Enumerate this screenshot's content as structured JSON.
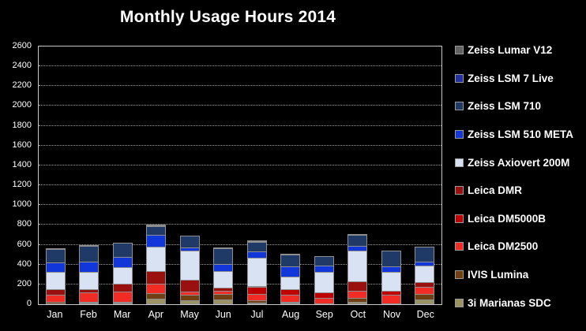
{
  "title": "Monthly Usage Hours 2014",
  "chart_data": {
    "type": "bar",
    "stacked": true,
    "title": "Monthly Usage Hours 2014",
    "xlabel": "",
    "ylabel": "",
    "categories": [
      "Jan",
      "Feb",
      "Mar",
      "Apr",
      "May",
      "Jun",
      "Jul",
      "Aug",
      "Sep",
      "Oct",
      "Nov",
      "Dec"
    ],
    "ylim": [
      0,
      2600
    ],
    "ytick_step": 200,
    "yticks": [
      0,
      200,
      400,
      600,
      800,
      1000,
      1200,
      1400,
      1600,
      1800,
      2000,
      2200,
      2400,
      2600
    ],
    "grid": "horizontal-dotted",
    "legend_position": "right",
    "background_color": "#000000",
    "series_bottom_to_top": [
      {
        "name": "3i Marianas SDC",
        "color": "#9C9362",
        "values": [
          0,
          10,
          5,
          55,
          40,
          50,
          20,
          10,
          0,
          25,
          0,
          50
        ]
      },
      {
        "name": "IVIS Lumina",
        "color": "#713F12",
        "values": [
          25,
          10,
          10,
          65,
          60,
          65,
          30,
          10,
          0,
          45,
          0,
          65
        ]
      },
      {
        "name": "Leica DM2500",
        "color": "#F02C25",
        "values": [
          75,
          105,
          110,
          105,
          40,
          35,
          70,
          80,
          65,
          80,
          95,
          75
        ]
      },
      {
        "name": "Leica DM5000B",
        "color": "#C00000",
        "values": [
          0,
          0,
          0,
          0,
          0,
          0,
          80,
          60,
          65,
          0,
          50,
          0
        ]
      },
      {
        "name": "Leica DMR",
        "color": "#9A100F",
        "values": [
          65,
          35,
          85,
          130,
          130,
          45,
          10,
          0,
          0,
          105,
          0,
          55
        ]
      },
      {
        "name": "Zeiss Axiovert 200M",
        "color": "#D9E2F2",
        "values": [
          185,
          190,
          175,
          255,
          305,
          170,
          290,
          135,
          215,
          320,
          195,
          180
        ]
      },
      {
        "name": "Zeiss LSM 510 META",
        "color": "#1136D9",
        "values": [
          105,
          105,
          112,
          132,
          38,
          78,
          78,
          118,
          65,
          55,
          65,
          45
        ]
      },
      {
        "name": "Zeiss LSM 710",
        "color": "#1F3A67",
        "values": [
          145,
          170,
          158,
          90,
          125,
          168,
          98,
          128,
          105,
          120,
          170,
          160
        ]
      },
      {
        "name": "Zeiss LSM 7 Live",
        "color": "#2531A3",
        "values": [
          10,
          10,
          0,
          10,
          0,
          10,
          15,
          15,
          0,
          10,
          0,
          0
        ]
      },
      {
        "name": "Zeiss Lumar V12",
        "color": "#636363",
        "values": [
          0,
          0,
          0,
          15,
          0,
          0,
          10,
          0,
          0,
          0,
          0,
          0
        ]
      }
    ],
    "legend_top_to_bottom": [
      "Zeiss Lumar V12",
      "Zeiss LSM 7 Live",
      "Zeiss LSM 710",
      "Zeiss LSM 510 META",
      "Zeiss Axiovert 200M",
      "Leica DMR",
      "Leica DM5000B",
      "Leica DM2500",
      "IVIS Lumina",
      "3i Marianas SDC"
    ]
  }
}
